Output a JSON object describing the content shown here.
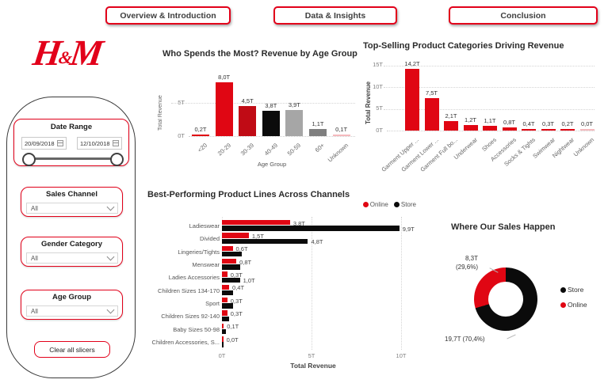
{
  "nav": {
    "buttons": [
      {
        "label": "Overview & Introduction"
      },
      {
        "label": "Data & Insights"
      },
      {
        "label": "Conclusion"
      }
    ]
  },
  "logo": {
    "part1": "H",
    "amp": "&",
    "part2": "M"
  },
  "sidebar": {
    "date_range": {
      "title": "Date Range",
      "start_date": "20/09/2018",
      "end_date": "12/10/2018"
    },
    "slicers": [
      {
        "title": "Sales Channel",
        "value": "All"
      },
      {
        "title": "Gender Category",
        "value": "All"
      },
      {
        "title": "Age Group",
        "value": "All"
      }
    ],
    "clear_button_label": "Clear all slicers"
  },
  "colors": {
    "brand_red": "#E2001A",
    "bar_red": "#E00613",
    "bar_dark_red": "#C00B15",
    "bar_black": "#0B0B0B",
    "bar_gray": "#A6A6A6",
    "bar_dark_gray": "#7F7F7F",
    "bar_pink": "#F5B9BD"
  },
  "chart_data": [
    {
      "type": "bar",
      "title": "Who Spends the Most? Revenue by Age Group",
      "xlabel": "Age Group",
      "ylabel": "Total Revenue",
      "categories": [
        "<20",
        "20-29",
        "30-39",
        "40-49",
        "50-59",
        "60+",
        "Unknown"
      ],
      "values": [
        0.2,
        8.0,
        4.5,
        3.8,
        3.9,
        1.1,
        0.1
      ],
      "labels": [
        "0,2T",
        "8,0T",
        "4,5T",
        "3,8T",
        "3,9T",
        "1,1T",
        "0,1T"
      ],
      "bar_colors": [
        "#E00613",
        "#E00613",
        "#C00B15",
        "#0B0B0B",
        "#A6A6A6",
        "#7F7F7F",
        "#F5B9BD"
      ],
      "yticks": [
        "0T",
        "5T"
      ],
      "ylim": [
        0,
        8.8
      ],
      "grid": "horizontal-dotted"
    },
    {
      "type": "bar",
      "title": "Top-Selling Product Categories Driving Revenue",
      "xlabel": "",
      "ylabel": "Total Revenue",
      "categories": [
        "Garment Upper ...",
        "Garment Lower ...",
        "Garment Full bo...",
        "Underwear",
        "Shoes",
        "Accessories",
        "Socks & Tights",
        "Swimwear",
        "Nightwear",
        "Unknown"
      ],
      "values": [
        14.2,
        7.5,
        2.1,
        1.2,
        1.1,
        0.8,
        0.4,
        0.3,
        0.2,
        0.0
      ],
      "labels": [
        "14,2T",
        "7,5T",
        "2,1T",
        "1,2T",
        "1,1T",
        "0,8T",
        "0,4T",
        "0,3T",
        "0,2T",
        "0,0T"
      ],
      "bar_colors": [
        "#E00613",
        "#E00613",
        "#E00613",
        "#E00613",
        "#E00613",
        "#E00613",
        "#E00613",
        "#E00613",
        "#E00613",
        "#F5B9BD"
      ],
      "yticks": [
        "0T",
        "5T",
        "10T",
        "15T"
      ],
      "ylim": [
        0,
        15
      ],
      "grid": "horizontal-dotted"
    },
    {
      "type": "bar-horizontal-grouped",
      "title": "Best-Performing Product Lines Across Channels",
      "xlabel": "Total Revenue",
      "categories": [
        "Ladieswear",
        "Divided",
        "Lingeries/Tights",
        "Menswear",
        "Ladies Accessories",
        "Children Sizes 134-170",
        "Sport",
        "Children Sizes 92-140",
        "Baby Sizes 50-98",
        "Children Accessories, S..."
      ],
      "series": [
        {
          "name": "Online",
          "color": "#E00613",
          "values": [
            3.8,
            1.5,
            0.6,
            0.8,
            0.3,
            0.4,
            0.3,
            0.3,
            0.1,
            0.0
          ],
          "labels": [
            "3,8T",
            "1,5T",
            "0,6T",
            "0,8T",
            "0,3T",
            "0,4T",
            "0,3T",
            "0,3T",
            "0,1T",
            "0,0T"
          ]
        },
        {
          "name": "Store",
          "color": "#0B0B0B",
          "values": [
            9.9,
            4.8,
            1.1,
            1.0,
            1.0,
            0.6,
            0.6,
            0.4,
            0.2,
            0.1
          ],
          "labels": [
            "9,9T",
            "4,8T",
            "",
            "",
            "1,0T",
            "",
            "",
            "",
            "",
            ""
          ]
        }
      ],
      "xticks": [
        "0T",
        "5T",
        "10T"
      ],
      "xlim": [
        0,
        10.6
      ],
      "legend_position": "top-right",
      "grid": "vertical-dotted"
    },
    {
      "type": "pie",
      "title": "Where Our Sales Happen",
      "donut": true,
      "slices": [
        {
          "name": "Store",
          "color": "#0B0B0B",
          "value": 19.7,
          "pct": 70.4,
          "label": "19,7T (70,4%)"
        },
        {
          "name": "Online",
          "color": "#E00613",
          "value": 8.3,
          "pct": 29.6,
          "label_line1": "8,3T",
          "label_line2": "(29,6%)"
        }
      ],
      "legend_position": "right"
    }
  ]
}
